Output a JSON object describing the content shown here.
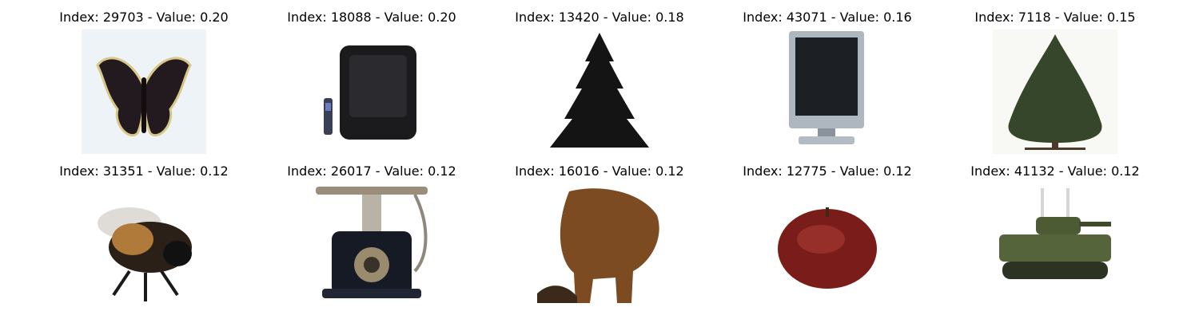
{
  "grid": {
    "tiles": [
      {
        "label": "Index: 29703 - Value: 0.20",
        "subject": "butterfly"
      },
      {
        "label": "Index: 18088 - Value: 0.20",
        "subject": "television"
      },
      {
        "label": "Index: 13420 - Value: 0.18",
        "subject": "pine tree"
      },
      {
        "label": "Index: 43071 - Value: 0.16",
        "subject": "flat screen monitor"
      },
      {
        "label": "Index: 7118 - Value: 0.15",
        "subject": "tree"
      },
      {
        "label": "Index: 31351 - Value: 0.12",
        "subject": "bee"
      },
      {
        "label": "Index: 26017 - Value: 0.12",
        "subject": "telephone"
      },
      {
        "label": "Index: 16016 - Value: 0.12",
        "subject": "animal"
      },
      {
        "label": "Index: 12775 - Value: 0.12",
        "subject": "apple"
      },
      {
        "label": "Index: 41132 - Value: 0.12",
        "subject": "tank"
      }
    ]
  }
}
